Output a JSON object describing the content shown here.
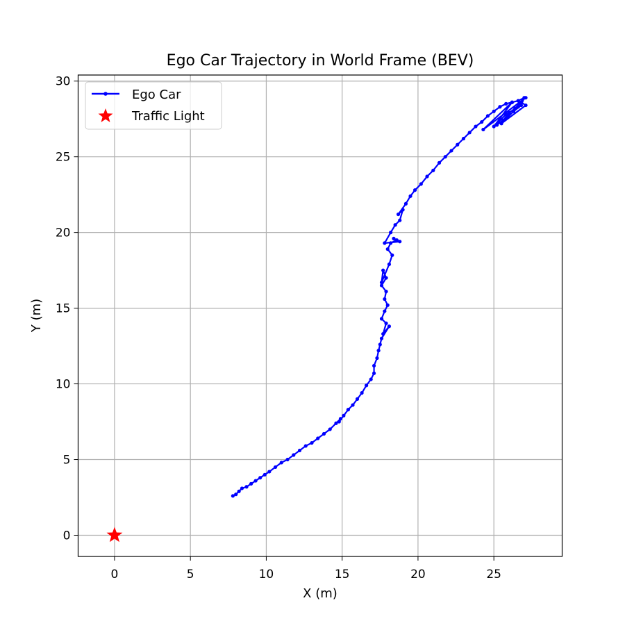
{
  "chart_data": {
    "type": "line",
    "title": "Ego Car Trajectory in World Frame (BEV)",
    "xlabel": "X (m)",
    "ylabel": "Y (m)",
    "xlim": [
      -2.4,
      29.5
    ],
    "ylim": [
      -1.4,
      30.4
    ],
    "xticks": [
      "0",
      "5",
      "10",
      "15",
      "20",
      "25"
    ],
    "yticks": [
      "0",
      "5",
      "10",
      "15",
      "20",
      "25",
      "30"
    ],
    "grid": true,
    "legend_position": "top-left",
    "series": [
      {
        "name": "Ego Car",
        "color": "#0000ff",
        "marker": "point",
        "x": [
          7.8,
          8.0,
          8.2,
          8.4,
          8.7,
          9.0,
          9.3,
          9.6,
          9.9,
          10.2,
          10.6,
          11.0,
          11.4,
          11.8,
          12.2,
          12.6,
          13.0,
          13.4,
          13.8,
          14.2,
          14.6,
          14.9,
          14.8,
          15.1,
          15.4,
          15.7,
          16.0,
          16.3,
          16.6,
          16.9,
          17.1,
          17.1,
          17.3,
          17.4,
          17.5,
          17.6,
          18.1,
          17.7,
          17.9,
          17.6,
          17.8,
          18.0,
          17.8,
          17.9,
          17.6,
          17.9,
          17.7,
          17.6,
          18.1,
          18.3,
          18.0,
          18.2,
          18.6,
          18.4,
          18.8,
          17.8,
          18.2,
          18.5,
          18.8,
          19.0,
          18.7,
          19.2,
          19.5,
          19.8,
          20.2,
          20.6,
          21.0,
          21.4,
          21.8,
          22.2,
          22.6,
          23.0,
          23.4,
          23.8,
          24.2,
          24.6,
          25.0,
          25.4,
          25.8,
          26.2,
          26.6,
          27.0,
          26.8,
          25.2,
          25.6,
          26.0,
          26.4,
          26.8,
          27.1,
          25.5,
          25.9,
          26.3,
          26.6,
          25.8,
          25.0,
          26.2,
          24.3,
          27.1
        ],
        "y": [
          2.6,
          2.7,
          2.9,
          3.1,
          3.2,
          3.4,
          3.6,
          3.8,
          4.0,
          4.2,
          4.5,
          4.8,
          5.0,
          5.3,
          5.6,
          5.9,
          6.1,
          6.4,
          6.7,
          7.0,
          7.4,
          7.7,
          7.5,
          7.9,
          8.3,
          8.6,
          9.0,
          9.4,
          9.9,
          10.3,
          10.7,
          11.2,
          11.7,
          12.2,
          12.6,
          13.0,
          13.8,
          13.3,
          14.0,
          14.3,
          14.8,
          15.2,
          15.6,
          16.1,
          16.5,
          17.0,
          17.5,
          16.7,
          17.9,
          18.5,
          18.9,
          19.3,
          19.5,
          19.6,
          19.4,
          19.3,
          20.0,
          20.5,
          20.8,
          21.5,
          21.2,
          21.9,
          22.4,
          22.8,
          23.2,
          23.7,
          24.1,
          24.6,
          25.0,
          25.4,
          25.8,
          26.2,
          26.6,
          27.0,
          27.3,
          27.7,
          28.0,
          28.3,
          28.5,
          28.6,
          28.7,
          28.9,
          28.4,
          27.1,
          27.4,
          27.9,
          28.2,
          28.6,
          28.4,
          27.2,
          27.6,
          28.0,
          28.3,
          27.8,
          27.0,
          28.6,
          26.8,
          28.9
        ]
      },
      {
        "name": "Traffic Light",
        "color": "#ff0000",
        "marker": "star",
        "x": [
          0
        ],
        "y": [
          0
        ]
      }
    ]
  }
}
